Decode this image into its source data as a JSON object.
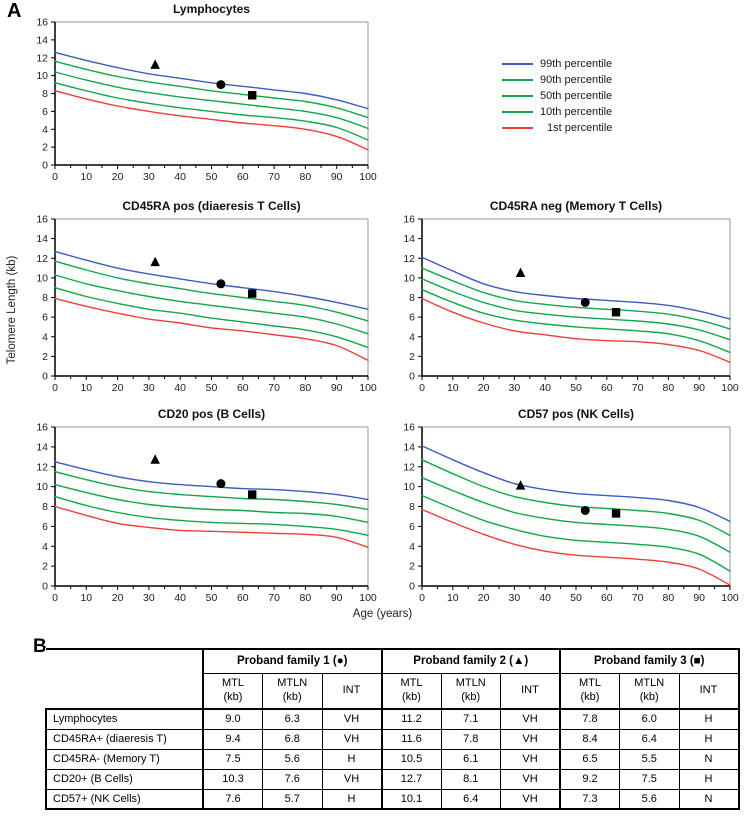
{
  "panel_a_label": "A",
  "panel_b_label": "B",
  "axis": {
    "x_label": "Age (years)",
    "y_label": "Telomere Length (kb)",
    "x_ticks": [
      0,
      10,
      20,
      30,
      40,
      50,
      60,
      70,
      80,
      90,
      100
    ],
    "y_ticks": [
      0,
      2,
      4,
      6,
      8,
      10,
      12,
      14,
      16
    ]
  },
  "legend": {
    "items": [
      {
        "label": "99th percentile",
        "color": "#3d5cc2"
      },
      {
        "label": "90th percentile",
        "color": "#12a74a"
      },
      {
        "label": "50th percentile",
        "color": "#12a74a"
      },
      {
        "label": "10th percentile",
        "color": "#12a74a"
      },
      {
        "label": "1st percentile",
        "color": "#ee3e38"
      }
    ]
  },
  "colors": {
    "percentile_99": "#3d5cc2",
    "percentile_mid": "#12a74a",
    "percentile_1": "#ee3e38",
    "marker": "#000000",
    "plot_frame": "#9a9a9a",
    "axis": "#000000"
  },
  "chart_data": [
    {
      "type": "line",
      "title": "Lymphocytes",
      "xlabel": "Age (years)",
      "ylabel": "Telomere Length (kb)",
      "xlim": [
        0,
        100
      ],
      "ylim": [
        0,
        16
      ],
      "x": [
        0,
        10,
        20,
        30,
        40,
        50,
        60,
        70,
        80,
        90,
        100
      ],
      "series": [
        {
          "name": "99th percentile",
          "color": "#3d5cc2",
          "values": [
            12.6,
            11.7,
            10.9,
            10.2,
            9.7,
            9.2,
            8.8,
            8.4,
            8.0,
            7.3,
            6.3
          ]
        },
        {
          "name": "90th percentile",
          "color": "#12a74a",
          "values": [
            11.6,
            10.7,
            9.9,
            9.3,
            8.8,
            8.3,
            7.9,
            7.5,
            7.1,
            6.4,
            5.3
          ]
        },
        {
          "name": "50th percentile",
          "color": "#12a74a",
          "values": [
            10.4,
            9.5,
            8.7,
            8.1,
            7.6,
            7.2,
            6.8,
            6.4,
            6.0,
            5.3,
            4.1
          ]
        },
        {
          "name": "10th percentile",
          "color": "#12a74a",
          "values": [
            9.2,
            8.3,
            7.5,
            6.9,
            6.4,
            6.0,
            5.6,
            5.3,
            4.9,
            4.2,
            2.8
          ]
        },
        {
          "name": "1st percentile",
          "color": "#ee3e38",
          "values": [
            8.3,
            7.4,
            6.6,
            6.0,
            5.5,
            5.1,
            4.7,
            4.4,
            4.0,
            3.2,
            1.7
          ]
        }
      ],
      "markers": [
        {
          "shape": "triangle",
          "proband": "Proband family 2",
          "x": 32,
          "y": 11.2
        },
        {
          "shape": "circle",
          "proband": "Proband family 1",
          "x": 53,
          "y": 9.0
        },
        {
          "shape": "square",
          "proband": "Proband family 3",
          "x": 63,
          "y": 7.8
        }
      ]
    },
    {
      "type": "line",
      "title": "CD45RA pos (diaeresis T Cells)",
      "xlabel": "Age (years)",
      "ylabel": "Telomere Length (kb)",
      "xlim": [
        0,
        100
      ],
      "ylim": [
        0,
        16
      ],
      "x": [
        0,
        10,
        20,
        30,
        40,
        50,
        60,
        70,
        80,
        90,
        100
      ],
      "series": [
        {
          "name": "99th percentile",
          "color": "#3d5cc2",
          "values": [
            12.7,
            11.8,
            11.0,
            10.4,
            9.9,
            9.4,
            9.0,
            8.6,
            8.1,
            7.5,
            6.8
          ]
        },
        {
          "name": "90th percentile",
          "color": "#12a74a",
          "values": [
            11.7,
            10.8,
            10.0,
            9.4,
            8.9,
            8.4,
            8.0,
            7.6,
            7.2,
            6.5,
            5.6
          ]
        },
        {
          "name": "50th percentile",
          "color": "#12a74a",
          "values": [
            10.3,
            9.4,
            8.7,
            8.1,
            7.6,
            7.2,
            6.8,
            6.4,
            6.0,
            5.3,
            4.3
          ]
        },
        {
          "name": "10th percentile",
          "color": "#12a74a",
          "values": [
            9.0,
            8.1,
            7.4,
            6.8,
            6.4,
            5.9,
            5.5,
            5.1,
            4.7,
            4.0,
            2.9
          ]
        },
        {
          "name": "1st percentile",
          "color": "#ee3e38",
          "values": [
            7.9,
            7.1,
            6.4,
            5.8,
            5.4,
            4.9,
            4.6,
            4.2,
            3.8,
            3.1,
            1.6
          ]
        }
      ],
      "markers": [
        {
          "shape": "triangle",
          "proband": "Proband family 2",
          "x": 32,
          "y": 11.6
        },
        {
          "shape": "circle",
          "proband": "Proband family 1",
          "x": 53,
          "y": 9.4
        },
        {
          "shape": "square",
          "proband": "Proband family 3",
          "x": 63,
          "y": 8.4
        }
      ]
    },
    {
      "type": "line",
      "title": "CD45RA neg (Memory T Cells)",
      "xlabel": "Age (years)",
      "ylabel": "Telomere Length (kb)",
      "xlim": [
        0,
        100
      ],
      "ylim": [
        0,
        16
      ],
      "x": [
        0,
        10,
        20,
        30,
        40,
        50,
        60,
        70,
        80,
        90,
        100
      ],
      "series": [
        {
          "name": "99th percentile",
          "color": "#3d5cc2",
          "values": [
            12.1,
            10.7,
            9.4,
            8.6,
            8.2,
            7.9,
            7.7,
            7.5,
            7.2,
            6.6,
            5.8
          ]
        },
        {
          "name": "90th percentile",
          "color": "#12a74a",
          "values": [
            11.0,
            9.7,
            8.5,
            7.7,
            7.3,
            7.0,
            6.8,
            6.6,
            6.3,
            5.7,
            4.8
          ]
        },
        {
          "name": "50th percentile",
          "color": "#12a74a",
          "values": [
            9.9,
            8.6,
            7.5,
            6.7,
            6.3,
            6.0,
            5.8,
            5.6,
            5.3,
            4.7,
            3.7
          ]
        },
        {
          "name": "10th percentile",
          "color": "#12a74a",
          "values": [
            8.8,
            7.5,
            6.4,
            5.7,
            5.3,
            5.0,
            4.8,
            4.6,
            4.3,
            3.6,
            2.4
          ]
        },
        {
          "name": "1st percentile",
          "color": "#ee3e38",
          "values": [
            7.9,
            6.5,
            5.4,
            4.6,
            4.2,
            3.8,
            3.6,
            3.5,
            3.2,
            2.6,
            1.4
          ]
        }
      ],
      "markers": [
        {
          "shape": "triangle",
          "proband": "Proband family 2",
          "x": 32,
          "y": 10.5
        },
        {
          "shape": "circle",
          "proband": "Proband family 1",
          "x": 53,
          "y": 7.5
        },
        {
          "shape": "square",
          "proband": "Proband family 3",
          "x": 63,
          "y": 6.5
        }
      ]
    },
    {
      "type": "line",
      "title": "CD20 pos (B Cells)",
      "xlabel": "Age (years)",
      "ylabel": "Telomere Length (kb)",
      "xlim": [
        0,
        100
      ],
      "ylim": [
        0,
        16
      ],
      "x": [
        0,
        10,
        20,
        30,
        40,
        50,
        60,
        70,
        80,
        90,
        100
      ],
      "series": [
        {
          "name": "99th percentile",
          "color": "#3d5cc2",
          "values": [
            12.5,
            11.7,
            11.0,
            10.5,
            10.2,
            10.0,
            9.8,
            9.7,
            9.5,
            9.2,
            8.7
          ]
        },
        {
          "name": "90th percentile",
          "color": "#12a74a",
          "values": [
            11.5,
            10.7,
            10.0,
            9.5,
            9.2,
            9.0,
            8.8,
            8.7,
            8.5,
            8.2,
            7.7
          ]
        },
        {
          "name": "50th percentile",
          "color": "#12a74a",
          "values": [
            10.2,
            9.4,
            8.7,
            8.2,
            7.9,
            7.7,
            7.6,
            7.4,
            7.3,
            7.0,
            6.4
          ]
        },
        {
          "name": "10th percentile",
          "color": "#12a74a",
          "values": [
            9.0,
            8.1,
            7.4,
            6.9,
            6.6,
            6.4,
            6.3,
            6.2,
            6.0,
            5.7,
            5.1
          ]
        },
        {
          "name": "1st percentile",
          "color": "#ee3e38",
          "values": [
            8.0,
            7.1,
            6.3,
            5.9,
            5.6,
            5.5,
            5.4,
            5.3,
            5.2,
            4.9,
            3.9
          ]
        }
      ],
      "markers": [
        {
          "shape": "triangle",
          "proband": "Proband family 2",
          "x": 32,
          "y": 12.7
        },
        {
          "shape": "circle",
          "proband": "Proband family 1",
          "x": 53,
          "y": 10.3
        },
        {
          "shape": "square",
          "proband": "Proband family 3",
          "x": 63,
          "y": 9.2
        }
      ]
    },
    {
      "type": "line",
      "title": "CD57 pos (NK Cells)",
      "xlabel": "Age (years)",
      "ylabel": "Telomere Length (kb)",
      "xlim": [
        0,
        100
      ],
      "ylim": [
        0,
        16
      ],
      "x": [
        0,
        10,
        20,
        30,
        40,
        50,
        60,
        70,
        80,
        90,
        100
      ],
      "series": [
        {
          "name": "99th percentile",
          "color": "#3d5cc2",
          "values": [
            14.1,
            12.7,
            11.4,
            10.3,
            9.7,
            9.3,
            9.1,
            8.9,
            8.6,
            7.9,
            6.5
          ]
        },
        {
          "name": "90th percentile",
          "color": "#12a74a",
          "values": [
            12.7,
            11.3,
            10.0,
            9.0,
            8.4,
            8.0,
            7.8,
            7.6,
            7.3,
            6.6,
            5.1
          ]
        },
        {
          "name": "50th percentile",
          "color": "#12a74a",
          "values": [
            10.9,
            9.6,
            8.4,
            7.4,
            6.8,
            6.4,
            6.2,
            6.0,
            5.7,
            5.0,
            3.4
          ]
        },
        {
          "name": "10th percentile",
          "color": "#12a74a",
          "values": [
            9.1,
            7.8,
            6.6,
            5.7,
            5.0,
            4.6,
            4.4,
            4.2,
            3.9,
            3.2,
            1.5
          ]
        },
        {
          "name": "1st percentile",
          "color": "#ee3e38",
          "values": [
            7.7,
            6.4,
            5.2,
            4.2,
            3.5,
            3.1,
            2.9,
            2.7,
            2.4,
            1.7,
            0.1
          ]
        }
      ],
      "markers": [
        {
          "shape": "triangle",
          "proband": "Proband family 2",
          "x": 32,
          "y": 10.1
        },
        {
          "shape": "circle",
          "proband": "Proband family 1",
          "x": 53,
          "y": 7.6
        },
        {
          "shape": "square",
          "proband": "Proband family 3",
          "x": 63,
          "y": 7.3
        }
      ]
    }
  ],
  "table": {
    "group_headers": [
      {
        "label": "Proband family 1 (●)"
      },
      {
        "label": "Proband family 2 (▲)"
      },
      {
        "label": "Proband family 3 (■)"
      }
    ],
    "sub_headers": [
      "MTL\n(kb)",
      "MTLN\n(kb)",
      "INT"
    ],
    "rows": [
      {
        "label": "Lymphocytes",
        "values": [
          "9.0",
          "6.3",
          "VH",
          "11.2",
          "7.1",
          "VH",
          "7.8",
          "6.0",
          "H"
        ]
      },
      {
        "label": "CD45RA+ (diaeresis T)",
        "values": [
          "9.4",
          "6.8",
          "VH",
          "11.6",
          "7.8",
          "VH",
          "8.4",
          "6.4",
          "H"
        ]
      },
      {
        "label": "CD45RA- (Memory T)",
        "values": [
          "7.5",
          "5.6",
          "H",
          "10.5",
          "6.1",
          "VH",
          "6.5",
          "5.5",
          "N"
        ]
      },
      {
        "label": "CD20+ (B Cells)",
        "values": [
          "10.3",
          "7.6",
          "VH",
          "12.7",
          "8.1",
          "VH",
          "9.2",
          "7.5",
          "H"
        ]
      },
      {
        "label": "CD57+ (NK Cells)",
        "values": [
          "7.6",
          "5.7",
          "H",
          "10.1",
          "6.4",
          "VH",
          "7.3",
          "5.6",
          "N"
        ]
      }
    ]
  }
}
